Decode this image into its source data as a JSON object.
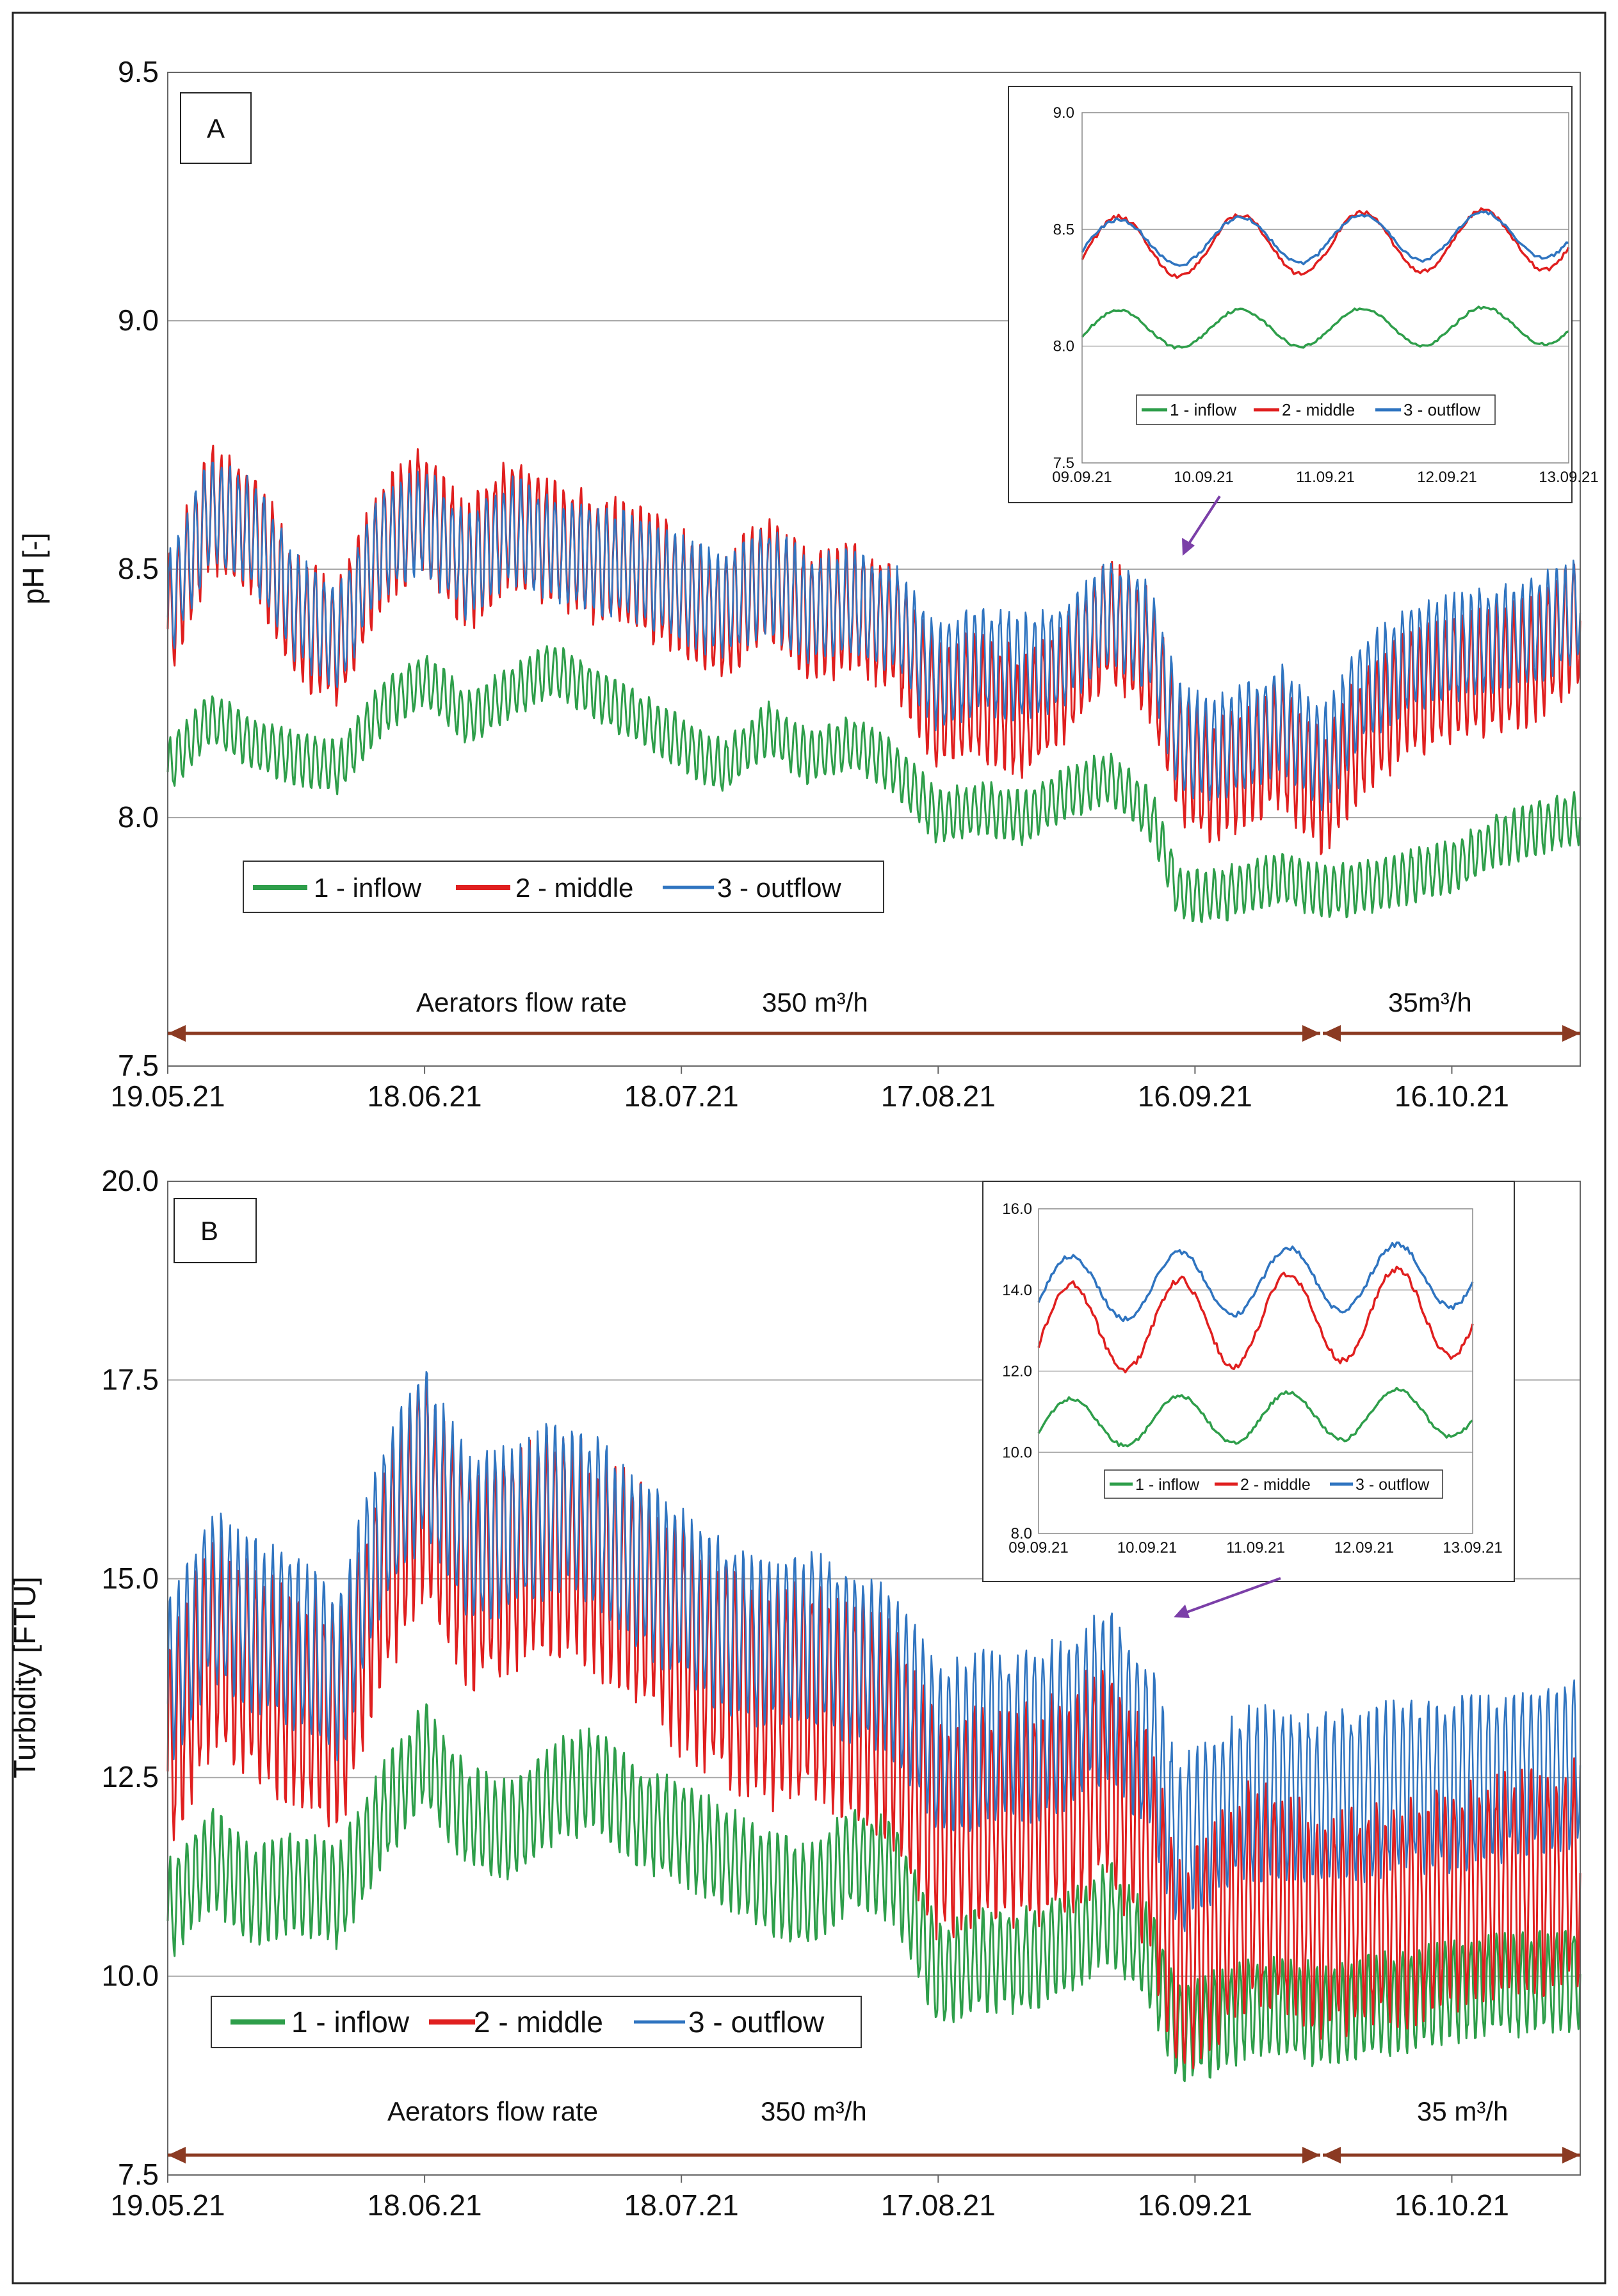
{
  "colors": {
    "inflow": "#2e9e4a",
    "middle": "#e01f1f",
    "outflow": "#2f74c0",
    "arrow": "#8b3a22",
    "callout": "#7b3fa8",
    "grid": "#a8a8a8"
  },
  "chart_data": [
    {
      "type": "line",
      "panel_label": "A",
      "ylabel": "pH [-]",
      "ylim": [
        7.5,
        9.5
      ],
      "yticks": [
        "7.5",
        "8.0",
        "8.5",
        "9.0",
        "9.5"
      ],
      "xlim_days": [
        0,
        165
      ],
      "xtick_labels": [
        "19.05.21",
        "18.06.21",
        "18.07.21",
        "17.08.21",
        "16.09.21",
        "16.10.21"
      ],
      "legend": [
        "1 - inflow",
        "2 - middle",
        "3 - outflow"
      ],
      "aerator_label": "Aerators flow rate",
      "rate_high": "350 m³/h",
      "rate_low": "35m³/h",
      "rate_change_day": 134,
      "diurnal_period_days": 1,
      "series": [
        {
          "name": "1 - inflow",
          "color_key": "inflow",
          "days": [
            0,
            5,
            10,
            15,
            20,
            25,
            30,
            35,
            40,
            45,
            50,
            55,
            60,
            65,
            70,
            75,
            80,
            85,
            90,
            95,
            100,
            105,
            110,
            115,
            118,
            122,
            126,
            130,
            135,
            140,
            145,
            150,
            155,
            160,
            165
          ],
          "values": [
            8.1,
            8.2,
            8.15,
            8.12,
            8.1,
            8.22,
            8.28,
            8.2,
            8.25,
            8.3,
            8.25,
            8.2,
            8.15,
            8.1,
            8.18,
            8.12,
            8.15,
            8.1,
            8.0,
            8.02,
            8.0,
            8.05,
            8.08,
            8.0,
            7.85,
            7.84,
            7.86,
            7.88,
            7.85,
            7.86,
            7.88,
            7.9,
            7.95,
            7.98,
            8.0
          ],
          "amp": 0.05
        },
        {
          "name": "2 - middle",
          "color_key": "middle",
          "days": [
            0,
            5,
            10,
            15,
            20,
            25,
            30,
            35,
            40,
            45,
            50,
            55,
            60,
            65,
            70,
            75,
            80,
            85,
            90,
            95,
            100,
            105,
            110,
            115,
            118,
            122,
            126,
            130,
            135,
            140,
            145,
            150,
            155,
            160,
            165
          ],
          "values": [
            8.4,
            8.62,
            8.58,
            8.4,
            8.35,
            8.55,
            8.62,
            8.5,
            8.6,
            8.55,
            8.52,
            8.5,
            8.45,
            8.4,
            8.48,
            8.4,
            8.42,
            8.38,
            8.22,
            8.25,
            8.2,
            8.28,
            8.4,
            8.32,
            8.12,
            8.08,
            8.1,
            8.15,
            8.05,
            8.18,
            8.25,
            8.28,
            8.3,
            8.32,
            8.4
          ],
          "amp": 0.12
        },
        {
          "name": "3 - outflow",
          "color_key": "outflow",
          "days": [
            0,
            5,
            10,
            15,
            20,
            25,
            30,
            35,
            40,
            45,
            50,
            55,
            60,
            65,
            70,
            75,
            80,
            85,
            90,
            95,
            100,
            105,
            110,
            115,
            118,
            122,
            126,
            130,
            135,
            140,
            145,
            150,
            155,
            160,
            165
          ],
          "values": [
            8.42,
            8.62,
            8.57,
            8.42,
            8.36,
            8.55,
            8.6,
            8.5,
            8.58,
            8.54,
            8.52,
            8.5,
            8.46,
            8.42,
            8.48,
            8.42,
            8.43,
            8.4,
            8.28,
            8.32,
            8.3,
            8.33,
            8.42,
            8.36,
            8.16,
            8.14,
            8.16,
            8.2,
            8.12,
            8.26,
            8.32,
            8.34,
            8.36,
            8.38,
            8.42
          ],
          "amp": 0.1
        }
      ],
      "inset": {
        "ylim": [
          7.5,
          9.0
        ],
        "yticks": [
          "7.5",
          "8.0",
          "8.5",
          "9.0"
        ],
        "xtick_labels": [
          "09.09.21",
          "10.09.21",
          "11.09.21",
          "12.09.21",
          "13.09.21"
        ],
        "legend": [
          "1 - inflow",
          "2 - middle",
          "3 - outflow"
        ],
        "series": [
          {
            "name": "1 - inflow",
            "color_key": "inflow",
            "base": 8.07,
            "amp": 0.08,
            "trend": 0.02
          },
          {
            "name": "2 - middle",
            "color_key": "middle",
            "base": 8.42,
            "amp": 0.13,
            "trend": 0.04
          },
          {
            "name": "3 - outflow",
            "color_key": "outflow",
            "base": 8.44,
            "amp": 0.1,
            "trend": 0.04
          }
        ]
      }
    },
    {
      "type": "line",
      "panel_label": "B",
      "ylabel": "Turbidity [FTU]",
      "ylim": [
        7.5,
        20.0
      ],
      "yticks": [
        "7.5",
        "10.0",
        "12.5",
        "15.0",
        "17.5",
        "20.0"
      ],
      "xlim_days": [
        0,
        165
      ],
      "xtick_labels": [
        "19.05.21",
        "18.06.21",
        "18.07.21",
        "17.08.21",
        "16.09.21",
        "16.10.21"
      ],
      "legend": [
        "1 - inflow",
        "2 - middle",
        "3 - outflow"
      ],
      "aerator_label": "Aerators flow rate",
      "rate_high": "350 m³/h",
      "rate_low": "35 m³/h",
      "rate_change_day": 134,
      "diurnal_period_days": 1,
      "series": [
        {
          "name": "1 - inflow",
          "color_key": "inflow",
          "days": [
            0,
            5,
            10,
            15,
            20,
            25,
            30,
            35,
            40,
            45,
            50,
            55,
            60,
            65,
            70,
            75,
            80,
            85,
            90,
            95,
            100,
            105,
            110,
            115,
            118,
            122,
            126,
            130,
            135,
            140,
            145,
            150,
            155,
            160,
            165
          ],
          "values": [
            10.8,
            11.5,
            11.0,
            11.2,
            11.0,
            12.0,
            12.8,
            12.0,
            11.8,
            12.3,
            12.5,
            12.0,
            11.8,
            11.5,
            11.2,
            11.0,
            11.5,
            11.3,
            10.0,
            10.2,
            10.2,
            10.4,
            10.8,
            10.2,
            9.3,
            9.4,
            9.6,
            9.6,
            9.5,
            9.6,
            9.7,
            9.8,
            9.9,
            9.9,
            10.0
          ],
          "amp": 0.6
        },
        {
          "name": "2 - middle",
          "color_key": "middle",
          "days": [
            0,
            5,
            10,
            15,
            20,
            25,
            30,
            35,
            40,
            45,
            50,
            55,
            60,
            65,
            70,
            75,
            80,
            85,
            90,
            95,
            100,
            105,
            110,
            115,
            118,
            122,
            126,
            130,
            135,
            140,
            145,
            150,
            155,
            160,
            165
          ],
          "values": [
            12.8,
            14.2,
            13.8,
            13.5,
            13.2,
            15.0,
            16.2,
            15.0,
            15.2,
            15.5,
            15.2,
            14.8,
            14.2,
            13.8,
            13.5,
            13.6,
            13.4,
            13.0,
            11.8,
            12.0,
            12.0,
            12.2,
            12.6,
            11.5,
            10.0,
            10.5,
            11.0,
            11.0,
            10.6,
            10.8,
            10.8,
            11.0,
            11.1,
            11.2,
            11.3
          ],
          "amp": 1.3
        },
        {
          "name": "3 - outflow",
          "color_key": "outflow",
          "days": [
            0,
            5,
            10,
            15,
            20,
            25,
            30,
            35,
            40,
            45,
            50,
            55,
            60,
            65,
            70,
            75,
            80,
            85,
            90,
            95,
            100,
            105,
            110,
            115,
            118,
            122,
            126,
            130,
            135,
            140,
            145,
            150,
            155,
            160,
            165
          ],
          "values": [
            13.6,
            14.8,
            14.4,
            14.2,
            13.8,
            15.6,
            16.6,
            15.5,
            15.6,
            15.9,
            15.7,
            15.2,
            14.8,
            14.4,
            14.2,
            14.3,
            14.0,
            13.8,
            12.8,
            13.0,
            13.0,
            13.2,
            13.6,
            12.8,
            11.6,
            12.0,
            12.3,
            12.3,
            12.2,
            12.3,
            12.4,
            12.4,
            12.5,
            12.6,
            12.7
          ],
          "amp": 1.0
        }
      ],
      "inset": {
        "ylim": [
          8.0,
          16.0
        ],
        "yticks": [
          "8.0",
          "10.0",
          "12.0",
          "14.0",
          "16.0"
        ],
        "xtick_labels": [
          "09.09.21",
          "10.09.21",
          "11.09.21",
          "12.09.21",
          "13.09.21"
        ],
        "legend": [
          "1 - inflow",
          "2 - middle",
          "3 - outflow"
        ],
        "series": [
          {
            "name": "1 - inflow",
            "color_key": "inflow",
            "base": 10.7,
            "amp": 0.6,
            "trend": 0.3
          },
          {
            "name": "2 - middle",
            "color_key": "middle",
            "base": 13.0,
            "amp": 1.1,
            "trend": 0.5
          },
          {
            "name": "3 - outflow",
            "color_key": "outflow",
            "base": 14.0,
            "amp": 0.8,
            "trend": 0.4
          }
        ]
      }
    }
  ]
}
